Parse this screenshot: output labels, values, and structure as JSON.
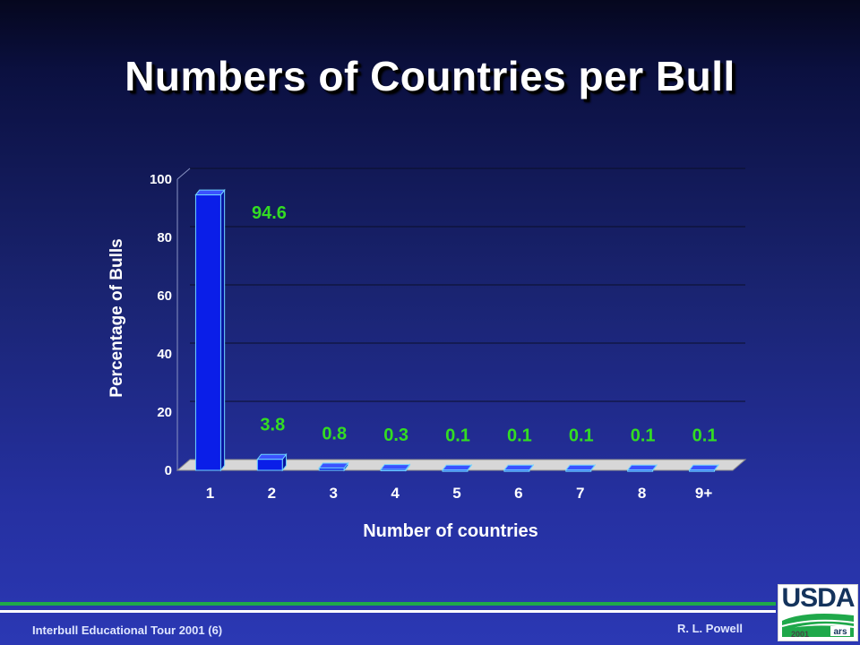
{
  "slide": {
    "title": "Numbers of Countries per Bull"
  },
  "chart_data": {
    "type": "bar",
    "categories": [
      "1",
      "2",
      "3",
      "4",
      "5",
      "6",
      "7",
      "8",
      "9+"
    ],
    "values": [
      94.6,
      3.8,
      0.8,
      0.3,
      0.1,
      0.1,
      0.1,
      0.1,
      0.1
    ],
    "data_labels": [
      "94.6",
      "3.8",
      "0.8",
      "0.3",
      "0.1",
      "0.1",
      "0.1",
      "0.1",
      "0.1"
    ],
    "xlabel": "Number of countries",
    "ylabel": "Percentage of Bulls",
    "ylim": [
      0,
      100
    ],
    "yticks": [
      "0",
      "20",
      "40",
      "60",
      "80",
      "100"
    ],
    "grid": true,
    "style": "3d",
    "colors": {
      "bar_front": "#0a1ee8",
      "bar_side": "#0612a0",
      "bar_top": "#3b52ff",
      "bar_edge": "#6fd3ff",
      "data_label": "#33dd22",
      "floor": "#d7d7d7",
      "axis_text": "#ffffff"
    }
  },
  "footer": {
    "left": "Interbull Educational Tour 2001 (6)",
    "right": "R. L. Powell"
  },
  "logo": {
    "text": "USDA",
    "year": "2001",
    "colors": {
      "text": "#14335c",
      "field": "#1fa84a"
    }
  }
}
